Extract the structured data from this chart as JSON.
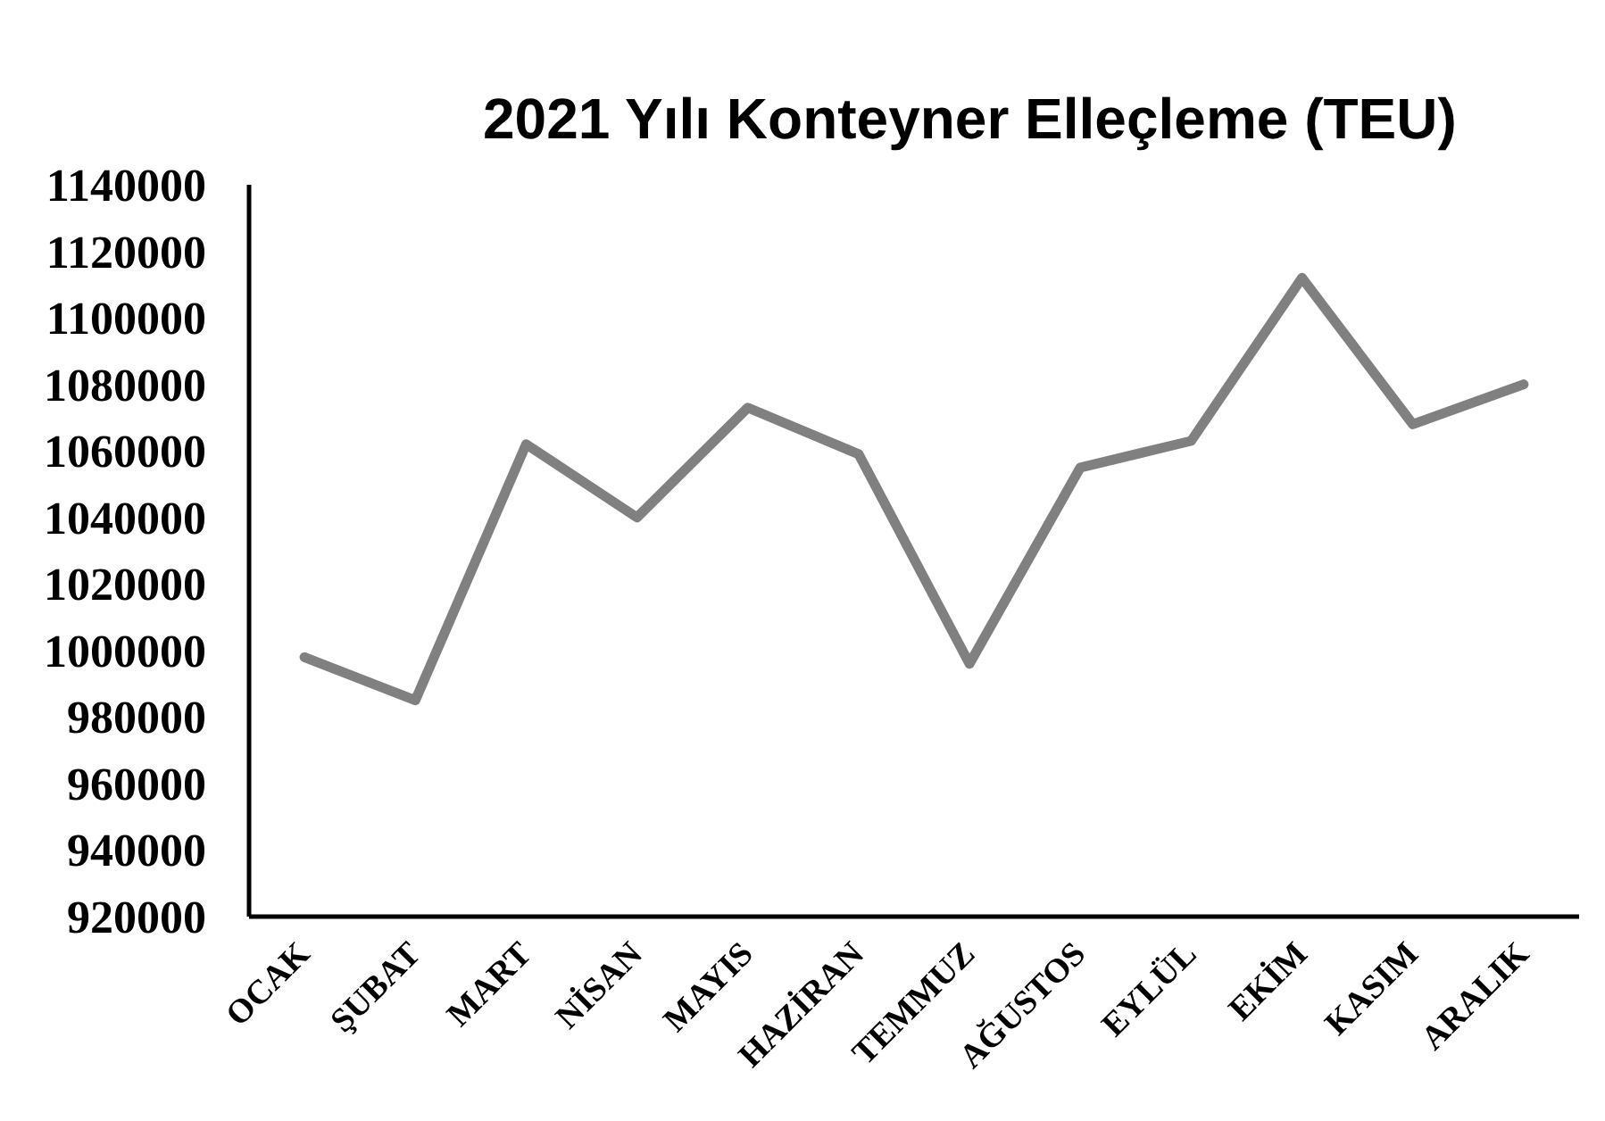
{
  "chart_data": {
    "type": "line",
    "title": "2021 Yılı Konteyner Elleçleme (TEU)",
    "categories": [
      "OCAK",
      "ŞUBAT",
      "MART",
      "NİSAN",
      "MAYIS",
      "HAZİRAN",
      "TEMMUZ",
      "AĞUSTOS",
      "EYLÜL",
      "EKİM",
      "KASIM",
      "ARALIK"
    ],
    "series": [
      {
        "color": "#808080",
        "values": [
          998000,
          985000,
          1062000,
          1040000,
          1073000,
          1059000,
          996000,
          1055000,
          1063000,
          1112000,
          1068000,
          1080000
        ]
      }
    ],
    "ylim": [
      920000,
      1140000
    ],
    "yticks": [
      920000,
      940000,
      960000,
      980000,
      1000000,
      1020000,
      1040000,
      1060000,
      1080000,
      1100000,
      1120000,
      1140000
    ],
    "grid": false,
    "marker": "none",
    "line_style": "solid"
  }
}
